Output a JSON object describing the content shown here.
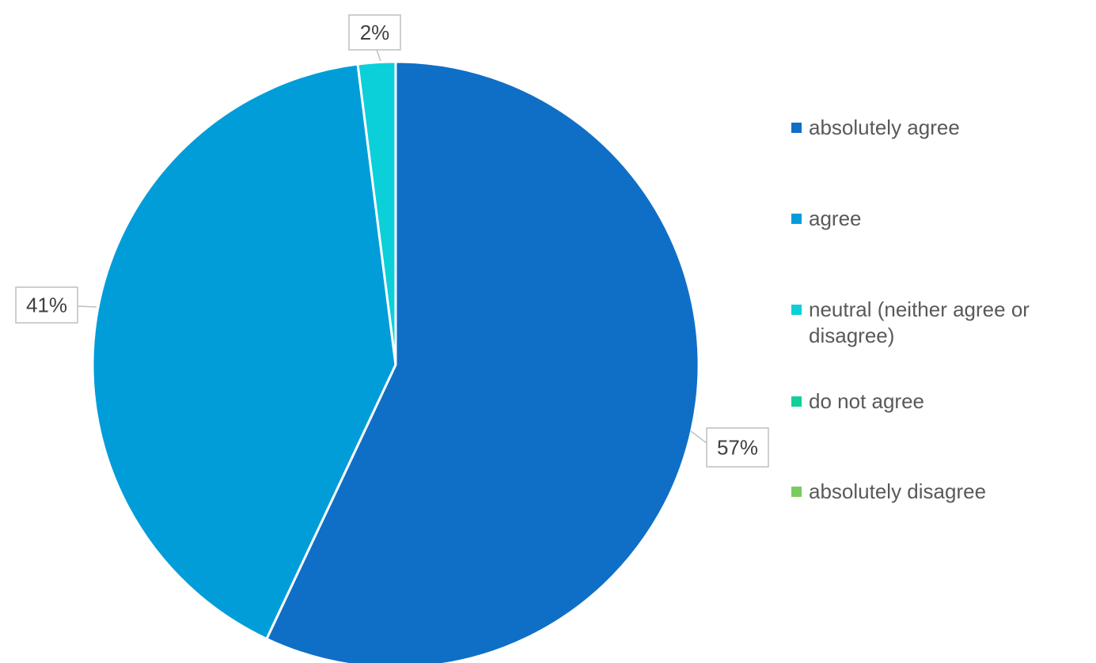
{
  "chart_data": {
    "type": "pie",
    "title": "",
    "categories": [
      "absolutely agree",
      "agree",
      "neutral (neither agree or disagree)",
      "do not agree",
      "absolutely disagree"
    ],
    "values": [
      57,
      41,
      2,
      0,
      0
    ],
    "labels": [
      "57%",
      "41%",
      "2%",
      "",
      ""
    ],
    "colors": [
      "#0f6fc6",
      "#009dd9",
      "#0bd0d9",
      "#10cf9b",
      "#7cca62"
    ],
    "legend_position": "right",
    "start_angle_deg": 0,
    "direction": "clockwise"
  }
}
